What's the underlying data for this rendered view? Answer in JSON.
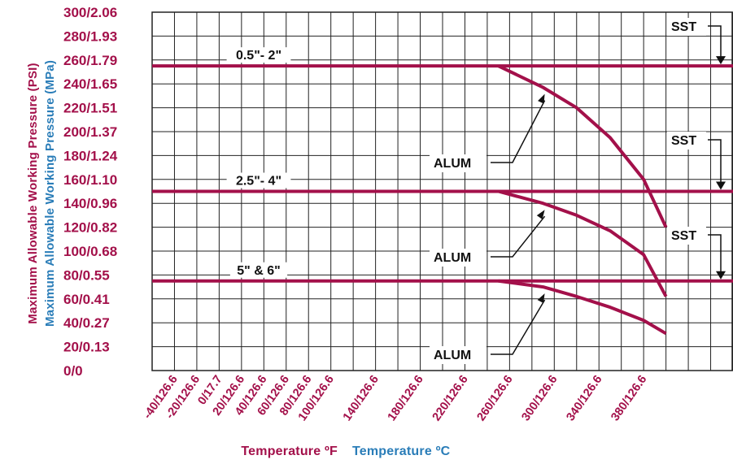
{
  "colors": {
    "maroon": "#a3104a",
    "blue": "#2a7db8",
    "grid": "#222222",
    "text": "#111111"
  },
  "chart_data": {
    "type": "line",
    "xlabel_f": "Temperature ºF",
    "xlabel_c": "Temperature ºC",
    "ylabel_psi": "Maximum Allowable Working Pressure (PSI)",
    "ylabel_mpa": "Maximum Allowable Working Pressure (MPa)",
    "ylim": [
      0,
      300
    ],
    "xlim": [
      -60,
      460
    ],
    "grid": true,
    "y_ticks": [
      {
        "value": 0,
        "label": "0/0"
      },
      {
        "value": 20,
        "label": "20/0.13"
      },
      {
        "value": 40,
        "label": "40/0.27"
      },
      {
        "value": 60,
        "label": "60/0.41"
      },
      {
        "value": 80,
        "label": "80/0.55"
      },
      {
        "value": 100,
        "label": "100/0.68"
      },
      {
        "value": 120,
        "label": "120/0.82"
      },
      {
        "value": 140,
        "label": "140/0.96"
      },
      {
        "value": 160,
        "label": "160/1.10"
      },
      {
        "value": 180,
        "label": "180/1.24"
      },
      {
        "value": 200,
        "label": "200/1.37"
      },
      {
        "value": 220,
        "label": "220/1.51"
      },
      {
        "value": 240,
        "label": "240/1.65"
      },
      {
        "value": 260,
        "label": "260/1.79"
      },
      {
        "value": 280,
        "label": "280/1.93"
      },
      {
        "value": 300,
        "label": "300/2.06"
      }
    ],
    "x_ticks": [
      {
        "value": -40,
        "label": "-40/126.6"
      },
      {
        "value": -20,
        "label": "-20/126.6"
      },
      {
        "value": 0,
        "label": "0/17.7"
      },
      {
        "value": 20,
        "label": "20/126.6"
      },
      {
        "value": 40,
        "label": "40/126.6"
      },
      {
        "value": 60,
        "label": "60/126.6"
      },
      {
        "value": 80,
        "label": "80/126.6"
      },
      {
        "value": 100,
        "label": "100/126.6"
      },
      {
        "value": 140,
        "label": "140/126.6"
      },
      {
        "value": 180,
        "label": "180/126.6"
      },
      {
        "value": 220,
        "label": "220/126.6"
      },
      {
        "value": 260,
        "label": "260/126.6"
      },
      {
        "value": 300,
        "label": "300/126.6"
      },
      {
        "value": 340,
        "label": "340/126.6"
      },
      {
        "value": 380,
        "label": "380/126.6"
      }
    ],
    "series": [
      {
        "name": "SST",
        "size": "0.5\"- 2\"",
        "x": [
          -60,
          460
        ],
        "y": [
          255,
          255
        ]
      },
      {
        "name": "ALUM",
        "size": "0.5\"- 2\"",
        "x": [
          250,
          290,
          320,
          350,
          380,
          400
        ],
        "y": [
          255,
          237,
          220,
          195,
          160,
          120
        ]
      },
      {
        "name": "SST",
        "size": "2.5\"- 4\"",
        "x": [
          -60,
          460
        ],
        "y": [
          150,
          150
        ]
      },
      {
        "name": "ALUM",
        "size": "2.5\"- 4\"",
        "x": [
          250,
          290,
          320,
          350,
          380,
          400
        ],
        "y": [
          150,
          140,
          130,
          117,
          97,
          62
        ]
      },
      {
        "name": "SST",
        "size": "5\" & 6\"",
        "x": [
          -60,
          460
        ],
        "y": [
          75,
          75
        ]
      },
      {
        "name": "ALUM",
        "size": "5\" & 6\"",
        "x": [
          250,
          290,
          320,
          350,
          380,
          400
        ],
        "y": [
          75,
          70,
          62,
          53,
          42,
          31
        ]
      }
    ],
    "annotations": {
      "size_labels": [
        "0.5\"- 2\"",
        "2.5\"- 4\"",
        "5\" & 6\""
      ],
      "sst": [
        "SST",
        "SST",
        "SST"
      ],
      "alum": [
        "ALUM",
        "ALUM",
        "ALUM"
      ]
    }
  }
}
